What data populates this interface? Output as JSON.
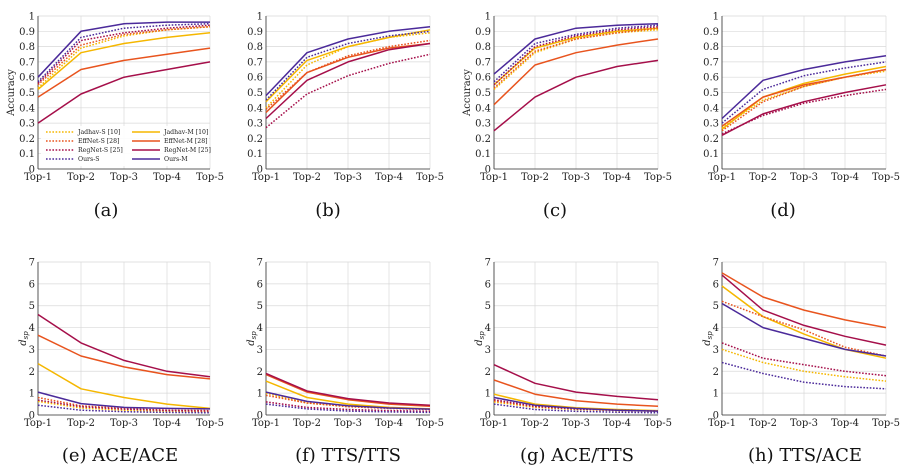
{
  "styles": {
    "Jadhav-S": {
      "color": "#f5b700",
      "dash": true
    },
    "Jadhav-M": {
      "color": "#f5b700",
      "dash": false
    },
    "EffNet-S": {
      "color": "#e8541e",
      "dash": true
    },
    "EffNet-M": {
      "color": "#e8541e",
      "dash": false
    },
    "RegNet-S": {
      "color": "#a50f4a",
      "dash": true
    },
    "RegNet-M": {
      "color": "#a50f4a",
      "dash": false
    },
    "Ours-S": {
      "color": "#4b2a9a",
      "dash": true
    },
    "Ours-M": {
      "color": "#4b2a9a",
      "dash": false
    }
  },
  "legend": [
    "Jadhav-S [10]",
    "Jadhav-M [10]",
    "EffNet-S [28]",
    "EffNet-M [28]",
    "RegNet-S [25]",
    "RegNet-M [25]",
    "Ours-S",
    "Ours-M"
  ],
  "chart_data": [
    {
      "type": "line",
      "caption": "(a)",
      "ylabel": "Accuracy",
      "ylim": [
        0,
        1
      ],
      "yticks": [
        "0",
        "0.1",
        "0.2",
        "0.3",
        "0.4",
        "0.5",
        "0.6",
        "0.7",
        "0.8",
        "0.9",
        "1"
      ],
      "categories": [
        "Top-1",
        "Top-2",
        "Top-3",
        "Top-4",
        "Top-5"
      ],
      "series": [
        {
          "name": "Jadhav-S",
          "values": [
            0.53,
            0.79,
            0.87,
            0.91,
            0.93
          ]
        },
        {
          "name": "Jadhav-M",
          "values": [
            0.52,
            0.76,
            0.82,
            0.86,
            0.89
          ]
        },
        {
          "name": "EffNet-S",
          "values": [
            0.55,
            0.81,
            0.88,
            0.91,
            0.93
          ]
        },
        {
          "name": "EffNet-M",
          "values": [
            0.47,
            0.65,
            0.71,
            0.75,
            0.79
          ]
        },
        {
          "name": "RegNet-S",
          "values": [
            0.56,
            0.84,
            0.89,
            0.92,
            0.94
          ]
        },
        {
          "name": "RegNet-M",
          "values": [
            0.3,
            0.49,
            0.6,
            0.65,
            0.7
          ]
        },
        {
          "name": "Ours-S",
          "values": [
            0.57,
            0.86,
            0.92,
            0.94,
            0.95
          ]
        },
        {
          "name": "Ours-M",
          "values": [
            0.6,
            0.9,
            0.95,
            0.96,
            0.96
          ]
        }
      ]
    },
    {
      "type": "line",
      "caption": "(b)",
      "ylabel": "",
      "ylim": [
        0,
        1
      ],
      "yticks": [
        "0",
        "0.1",
        "0.2",
        "0.3",
        "0.4",
        "0.5",
        "0.6",
        "0.7",
        "0.8",
        "0.9",
        "1"
      ],
      "categories": [
        "Top-1",
        "Top-2",
        "Top-3",
        "Top-4",
        "Top-5"
      ],
      "series": [
        {
          "name": "Jadhav-S",
          "values": [
            0.4,
            0.68,
            0.8,
            0.86,
            0.89
          ]
        },
        {
          "name": "Jadhav-M",
          "values": [
            0.44,
            0.71,
            0.8,
            0.86,
            0.91
          ]
        },
        {
          "name": "EffNet-S",
          "values": [
            0.39,
            0.63,
            0.74,
            0.8,
            0.84
          ]
        },
        {
          "name": "EffNet-M",
          "values": [
            0.37,
            0.63,
            0.73,
            0.79,
            0.82
          ]
        },
        {
          "name": "RegNet-S",
          "values": [
            0.27,
            0.49,
            0.61,
            0.69,
            0.75
          ]
        },
        {
          "name": "RegNet-M",
          "values": [
            0.33,
            0.58,
            0.7,
            0.78,
            0.82
          ]
        },
        {
          "name": "Ours-S",
          "values": [
            0.45,
            0.73,
            0.82,
            0.87,
            0.9
          ]
        },
        {
          "name": "Ours-M",
          "values": [
            0.48,
            0.76,
            0.85,
            0.9,
            0.93
          ]
        }
      ]
    },
    {
      "type": "line",
      "caption": "(c)",
      "ylabel": "Accuracy",
      "ylim": [
        0,
        1
      ],
      "yticks": [
        "0",
        "0.1",
        "0.2",
        "0.3",
        "0.4",
        "0.5",
        "0.6",
        "0.7",
        "0.8",
        "0.9",
        "1"
      ],
      "categories": [
        "Top-1",
        "Top-2",
        "Top-3",
        "Top-4",
        "Top-5"
      ],
      "series": [
        {
          "name": "Jadhav-S",
          "values": [
            0.52,
            0.76,
            0.85,
            0.89,
            0.91
          ]
        },
        {
          "name": "Jadhav-M",
          "values": [
            0.55,
            0.79,
            0.86,
            0.9,
            0.92
          ]
        },
        {
          "name": "EffNet-S",
          "values": [
            0.53,
            0.77,
            0.85,
            0.89,
            0.92
          ]
        },
        {
          "name": "EffNet-M",
          "values": [
            0.42,
            0.68,
            0.76,
            0.81,
            0.85
          ]
        },
        {
          "name": "RegNet-S",
          "values": [
            0.55,
            0.8,
            0.87,
            0.91,
            0.93
          ]
        },
        {
          "name": "RegNet-M",
          "values": [
            0.25,
            0.47,
            0.6,
            0.67,
            0.71
          ]
        },
        {
          "name": "Ours-S",
          "values": [
            0.57,
            0.82,
            0.88,
            0.92,
            0.94
          ]
        },
        {
          "name": "Ours-M",
          "values": [
            0.62,
            0.85,
            0.92,
            0.94,
            0.95
          ]
        }
      ]
    },
    {
      "type": "line",
      "caption": "(d)",
      "ylabel": "",
      "ylim": [
        0,
        1
      ],
      "yticks": [
        "0",
        "0.1",
        "0.2",
        "0.3",
        "0.4",
        "0.5",
        "0.6",
        "0.7",
        "0.8",
        "0.9",
        "1"
      ],
      "categories": [
        "Top-1",
        "Top-2",
        "Top-3",
        "Top-4",
        "Top-5"
      ],
      "series": [
        {
          "name": "Jadhav-S",
          "values": [
            0.27,
            0.45,
            0.54,
            0.6,
            0.64
          ]
        },
        {
          "name": "Jadhav-M",
          "values": [
            0.26,
            0.47,
            0.56,
            0.62,
            0.67
          ]
        },
        {
          "name": "EffNet-S",
          "values": [
            0.25,
            0.44,
            0.54,
            0.6,
            0.65
          ]
        },
        {
          "name": "EffNet-M",
          "values": [
            0.28,
            0.47,
            0.55,
            0.6,
            0.65
          ]
        },
        {
          "name": "RegNet-S",
          "values": [
            0.23,
            0.35,
            0.43,
            0.48,
            0.52
          ]
        },
        {
          "name": "RegNet-M",
          "values": [
            0.22,
            0.36,
            0.44,
            0.5,
            0.55
          ]
        },
        {
          "name": "Ours-S",
          "values": [
            0.3,
            0.52,
            0.61,
            0.66,
            0.7
          ]
        },
        {
          "name": "Ours-M",
          "values": [
            0.33,
            0.58,
            0.65,
            0.7,
            0.74
          ]
        }
      ]
    },
    {
      "type": "line",
      "caption": "(e) ACE/ACE",
      "ylabel": "d_sp",
      "ylim": [
        0,
        7
      ],
      "yticks": [
        "0",
        "1",
        "2",
        "3",
        "4",
        "5",
        "6",
        "7"
      ],
      "categories": [
        "Top-1",
        "Top-2",
        "Top-3",
        "Top-4",
        "Top-5"
      ],
      "series": [
        {
          "name": "Jadhav-S",
          "values": [
            0.62,
            0.32,
            0.22,
            0.17,
            0.14
          ]
        },
        {
          "name": "Jadhav-M",
          "values": [
            2.35,
            1.2,
            0.8,
            0.5,
            0.3
          ]
        },
        {
          "name": "EffNet-S",
          "values": [
            0.8,
            0.42,
            0.3,
            0.22,
            0.2
          ]
        },
        {
          "name": "EffNet-M",
          "values": [
            3.65,
            2.7,
            2.2,
            1.85,
            1.65
          ]
        },
        {
          "name": "RegNet-S",
          "values": [
            0.68,
            0.38,
            0.27,
            0.21,
            0.18
          ]
        },
        {
          "name": "RegNet-M",
          "values": [
            4.6,
            3.3,
            2.5,
            2.0,
            1.75
          ]
        },
        {
          "name": "Ours-S",
          "values": [
            0.45,
            0.22,
            0.15,
            0.12,
            0.1
          ]
        },
        {
          "name": "Ours-M",
          "values": [
            1.05,
            0.52,
            0.35,
            0.3,
            0.28
          ]
        }
      ]
    },
    {
      "type": "line",
      "caption": "(f) TTS/TTS",
      "ylabel": "d_sp",
      "ylim": [
        0,
        7
      ],
      "yticks": [
        "0",
        "1",
        "2",
        "3",
        "4",
        "5",
        "6",
        "7"
      ],
      "categories": [
        "Top-1",
        "Top-2",
        "Top-3",
        "Top-4",
        "Top-5"
      ],
      "series": [
        {
          "name": "Jadhav-S",
          "values": [
            1.0,
            0.55,
            0.4,
            0.32,
            0.27
          ]
        },
        {
          "name": "Jadhav-M",
          "values": [
            1.55,
            0.8,
            0.5,
            0.35,
            0.28
          ]
        },
        {
          "name": "EffNet-S",
          "values": [
            0.9,
            0.55,
            0.38,
            0.3,
            0.25
          ]
        },
        {
          "name": "EffNet-M",
          "values": [
            1.85,
            1.05,
            0.7,
            0.5,
            0.4
          ]
        },
        {
          "name": "RegNet-S",
          "values": [
            0.6,
            0.35,
            0.25,
            0.2,
            0.17
          ]
        },
        {
          "name": "RegNet-M",
          "values": [
            1.9,
            1.1,
            0.75,
            0.55,
            0.45
          ]
        },
        {
          "name": "Ours-S",
          "values": [
            0.5,
            0.28,
            0.18,
            0.14,
            0.12
          ]
        },
        {
          "name": "Ours-M",
          "values": [
            1.05,
            0.62,
            0.42,
            0.32,
            0.27
          ]
        }
      ]
    },
    {
      "type": "line",
      "caption": "(g) ACE/TTS",
      "ylabel": "d_sp",
      "ylim": [
        0,
        7
      ],
      "yticks": [
        "0",
        "1",
        "2",
        "3",
        "4",
        "5",
        "6",
        "7"
      ],
      "categories": [
        "Top-1",
        "Top-2",
        "Top-3",
        "Top-4",
        "Top-5"
      ],
      "series": [
        {
          "name": "Jadhav-S",
          "values": [
            0.6,
            0.35,
            0.25,
            0.2,
            0.17
          ]
        },
        {
          "name": "Jadhav-M",
          "values": [
            0.95,
            0.5,
            0.33,
            0.25,
            0.2
          ]
        },
        {
          "name": "EffNet-S",
          "values": [
            0.65,
            0.38,
            0.27,
            0.21,
            0.18
          ]
        },
        {
          "name": "EffNet-M",
          "values": [
            1.6,
            0.95,
            0.65,
            0.5,
            0.4
          ]
        },
        {
          "name": "RegNet-S",
          "values": [
            0.7,
            0.4,
            0.28,
            0.22,
            0.18
          ]
        },
        {
          "name": "RegNet-M",
          "values": [
            2.3,
            1.45,
            1.05,
            0.85,
            0.7
          ]
        },
        {
          "name": "Ours-S",
          "values": [
            0.5,
            0.25,
            0.17,
            0.13,
            0.1
          ]
        },
        {
          "name": "Ours-M",
          "values": [
            0.8,
            0.45,
            0.3,
            0.22,
            0.18
          ]
        }
      ]
    },
    {
      "type": "line",
      "caption": "(h) TTS/ACE",
      "ylabel": "d_sp",
      "ylim": [
        0,
        7
      ],
      "yticks": [
        "0",
        "1",
        "2",
        "3",
        "4",
        "5",
        "6",
        "7"
      ],
      "categories": [
        "Top-1",
        "Top-2",
        "Top-3",
        "Top-4",
        "Top-5"
      ],
      "series": [
        {
          "name": "Jadhav-S",
          "values": [
            3.0,
            2.4,
            2.0,
            1.75,
            1.55
          ]
        },
        {
          "name": "Jadhav-M",
          "values": [
            5.9,
            4.5,
            3.7,
            3.0,
            2.6
          ]
        },
        {
          "name": "EffNet-S",
          "values": [
            5.2,
            4.5,
            3.9,
            3.1,
            2.7
          ]
        },
        {
          "name": "EffNet-M",
          "values": [
            6.5,
            5.4,
            4.8,
            4.35,
            4.0
          ]
        },
        {
          "name": "RegNet-S",
          "values": [
            3.3,
            2.6,
            2.3,
            2.0,
            1.8
          ]
        },
        {
          "name": "RegNet-M",
          "values": [
            6.4,
            4.8,
            4.1,
            3.6,
            3.2
          ]
        },
        {
          "name": "Ours-S",
          "values": [
            2.4,
            1.9,
            1.5,
            1.3,
            1.2
          ]
        },
        {
          "name": "Ours-M",
          "values": [
            5.1,
            4.0,
            3.5,
            3.0,
            2.7
          ]
        }
      ]
    }
  ]
}
